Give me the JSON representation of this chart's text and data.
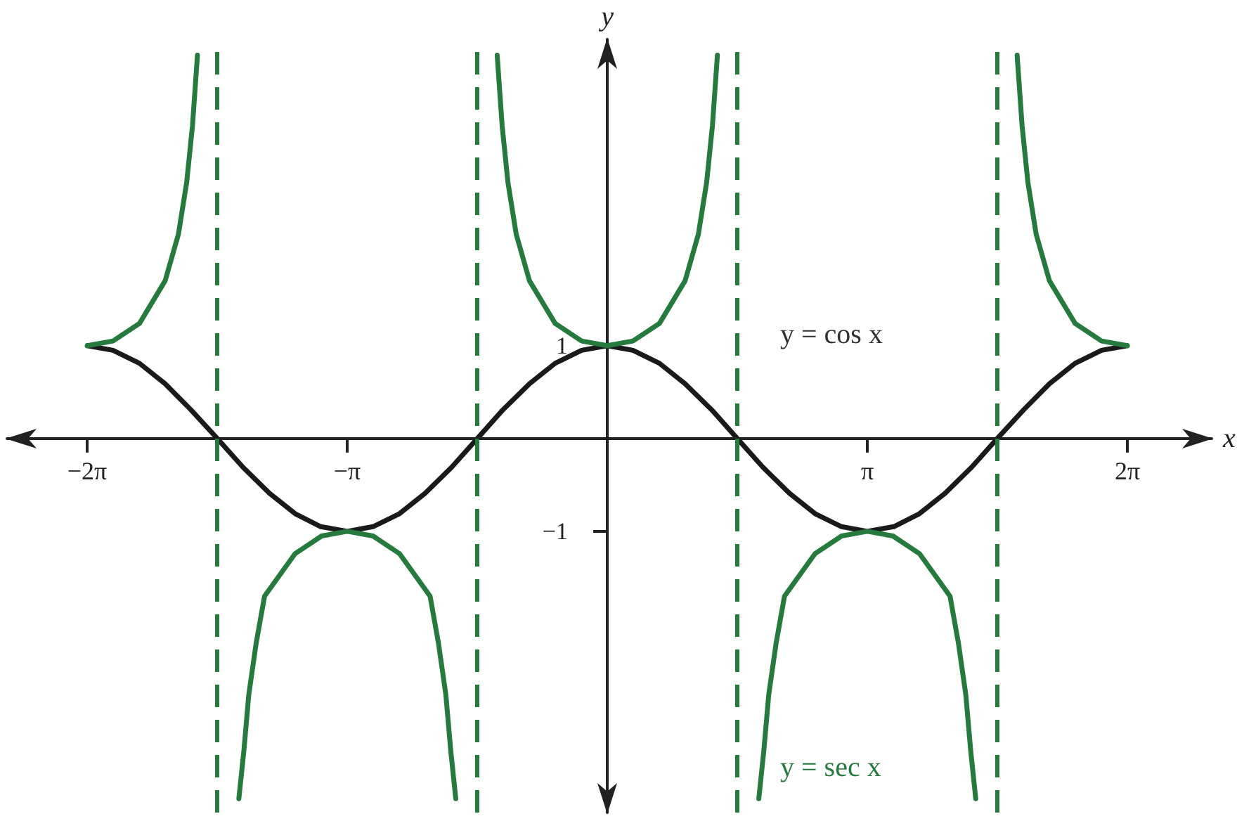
{
  "chart_data": {
    "type": "line",
    "xlabel": "x",
    "ylabel": "y",
    "xlim": [
      -7.25,
      7.3
    ],
    "ylim": [
      -4.03,
      4.3
    ],
    "xticks": [
      {
        "value": -6.283,
        "label": "−2π"
      },
      {
        "value": -3.142,
        "label": "−π"
      },
      {
        "value": 3.142,
        "label": "π"
      },
      {
        "value": 6.283,
        "label": "2π"
      }
    ],
    "yticks": [
      {
        "value": 1,
        "label": "1"
      },
      {
        "value": -1,
        "label": "−1"
      }
    ],
    "marker": "none",
    "line_style": "solid",
    "grid": false,
    "series": [
      {
        "name": "y = cos x",
        "color": "#1a1a1a",
        "x": [
          -6.28,
          -5.97,
          -5.65,
          -5.34,
          -5.03,
          -4.71,
          -4.4,
          -4.08,
          -3.77,
          -3.46,
          -3.14,
          -2.83,
          -2.51,
          -2.2,
          -1.88,
          -1.57,
          -1.26,
          -0.94,
          -0.63,
          -0.31,
          0,
          0.31,
          0.63,
          0.94,
          1.26,
          1.57,
          1.88,
          2.2,
          2.51,
          2.83,
          3.14,
          3.46,
          3.77,
          4.08,
          4.4,
          4.71,
          5.03,
          5.34,
          5.65,
          5.97,
          6.28
        ],
        "values": [
          1,
          0.95,
          0.81,
          0.59,
          0.31,
          0,
          -0.31,
          -0.59,
          -0.81,
          -0.95,
          -1,
          -0.95,
          -0.81,
          -0.59,
          -0.31,
          0,
          0.31,
          0.59,
          0.81,
          0.95,
          1,
          0.95,
          0.81,
          0.59,
          0.31,
          0,
          -0.31,
          -0.59,
          -0.81,
          -0.95,
          -1,
          -0.95,
          -0.81,
          -0.59,
          -0.31,
          0,
          0.31,
          0.59,
          0.81,
          0.95,
          1
        ]
      },
      {
        "name": "y = sec x",
        "color": "#267a3e",
        "x": [
          -6.28,
          -5.97,
          -5.65,
          -5.34,
          -5.18,
          -5.08,
          -5.01,
          -4.95,
          -4.71,
          -4.45,
          -4.39,
          -4.33,
          -4.24,
          -4.14,
          -3.77,
          -3.45,
          -3.14,
          -2.83,
          -2.51,
          -2.14,
          -2.04,
          -1.95,
          -1.89,
          -1.83,
          -1.57,
          -1.33,
          -1.27,
          -1.2,
          -1.1,
          -0.94,
          -0.63,
          -0.31,
          0,
          0.31,
          0.63,
          0.94,
          1.1,
          1.2,
          1.27,
          1.33,
          1.57,
          1.83,
          1.89,
          1.95,
          2.04,
          2.14,
          2.51,
          2.83,
          3.14,
          3.45,
          3.77,
          4.14,
          4.24,
          4.33,
          4.39,
          4.45,
          4.71,
          4.95,
          5.01,
          5.08,
          5.18,
          5.34,
          5.65,
          5.97,
          6.28
        ],
        "values": [
          1,
          1.05,
          1.24,
          1.7,
          2.2,
          2.76,
          3.37,
          4.13,
          null,
          -3.88,
          -3.37,
          -2.76,
          -2.2,
          -1.7,
          -1.24,
          -1.05,
          -1,
          -1.05,
          -1.24,
          -1.7,
          -2.2,
          -2.76,
          -3.37,
          -3.88,
          null,
          4.13,
          3.37,
          2.76,
          2.2,
          1.7,
          1.24,
          1.05,
          1,
          1.05,
          1.24,
          1.7,
          2.2,
          2.76,
          3.37,
          4.13,
          null,
          -3.88,
          -3.37,
          -2.76,
          -2.2,
          -1.7,
          -1.24,
          -1.05,
          -1,
          -1.05,
          -1.24,
          -1.7,
          -2.2,
          -2.76,
          -3.37,
          -3.88,
          null,
          4.13,
          3.37,
          2.76,
          2.2,
          1.7,
          1.24,
          1.05,
          1
        ]
      }
    ],
    "ref_lines": [
      {
        "axis": "x",
        "value": -4.712,
        "color": "#267a3e",
        "line_style": "dashed"
      },
      {
        "axis": "x",
        "value": -1.571,
        "color": "#267a3e",
        "line_style": "dashed"
      },
      {
        "axis": "x",
        "value": 1.571,
        "color": "#267a3e",
        "line_style": "dashed"
      },
      {
        "axis": "x",
        "value": 4.712,
        "color": "#267a3e",
        "line_style": "dashed"
      }
    ]
  }
}
